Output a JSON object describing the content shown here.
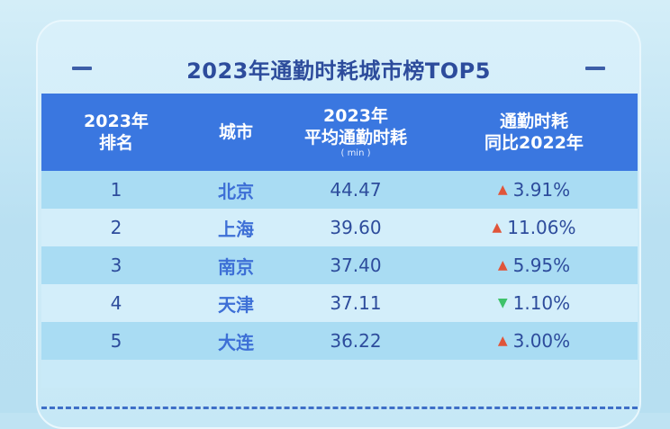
{
  "title": "2023年通勤时耗城市榜TOP5",
  "headers": {
    "rank_line1": "2023年",
    "rank_line2": "排名",
    "city": "城市",
    "time_line1": "2023年",
    "time_line2": "平均通勤时耗",
    "time_unit": "( min )",
    "change_line1": "通勤时耗",
    "change_line2": "同比2022年"
  },
  "rows": [
    {
      "rank": "1",
      "city": "北京",
      "time": "44.47",
      "direction": "up",
      "change": "3.91%"
    },
    {
      "rank": "2",
      "city": "上海",
      "time": "39.60",
      "direction": "up",
      "change": "11.06%"
    },
    {
      "rank": "3",
      "city": "南京",
      "time": "37.40",
      "direction": "up",
      "change": "5.95%"
    },
    {
      "rank": "4",
      "city": "天津",
      "time": "37.11",
      "direction": "down",
      "change": "1.10%"
    },
    {
      "rank": "5",
      "city": "大连",
      "time": "36.22",
      "direction": "up",
      "change": "3.00%"
    }
  ],
  "icons": {
    "up": "arrow-up-icon",
    "down": "arrow-down-icon"
  },
  "colors": {
    "header": "#3a77e0",
    "up": "#e0553a",
    "down": "#3ec26a",
    "title": "#2d4c9c"
  }
}
